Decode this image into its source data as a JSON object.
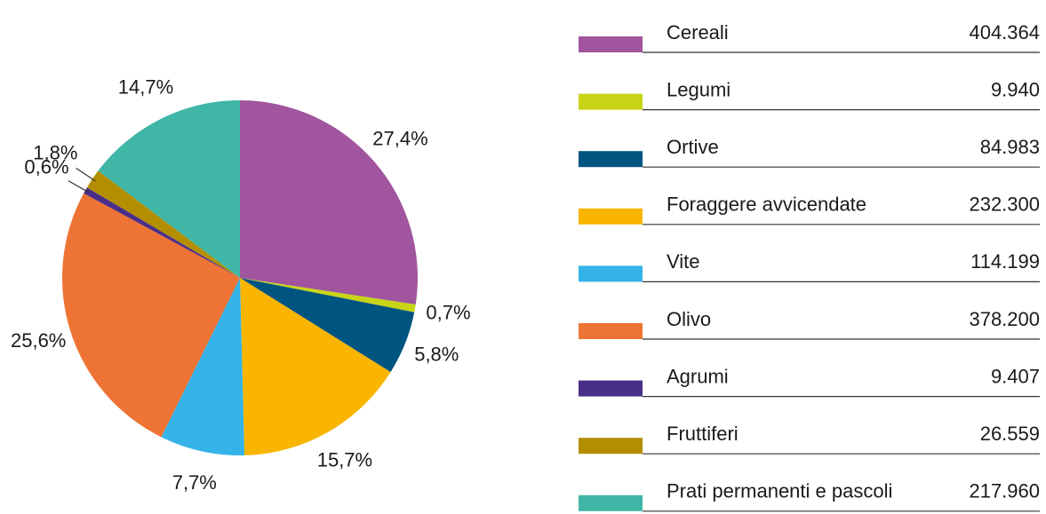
{
  "chart_data": {
    "type": "pie",
    "categories": [
      "Cereali",
      "Legumi",
      "Ortive",
      "Foraggere avvicendate",
      "Vite",
      "Olivo",
      "Agrumi",
      "Fruttiferi",
      "Prati permanenti e pascoli"
    ],
    "values": [
      27.4,
      0.7,
      5.8,
      15.7,
      7.7,
      25.6,
      0.6,
      1.8,
      14.7
    ],
    "value_labels": [
      "27,4%",
      "0,7%",
      "5,8%",
      "15,7%",
      "7,7%",
      "25,6%",
      "0,6%",
      "1,8%",
      "14,7%"
    ],
    "colors": [
      "#a0559e",
      "#c8d416",
      "#005480",
      "#f9b500",
      "#35b3e8",
      "#ee7435",
      "#4a2f88",
      "#b38e00",
      "#40b6a6"
    ],
    "legend_values": [
      "404.364",
      "9.940",
      "84.983",
      "232.300",
      "114.199",
      "378.200",
      "9.407",
      "26.559",
      "217.960"
    ]
  }
}
